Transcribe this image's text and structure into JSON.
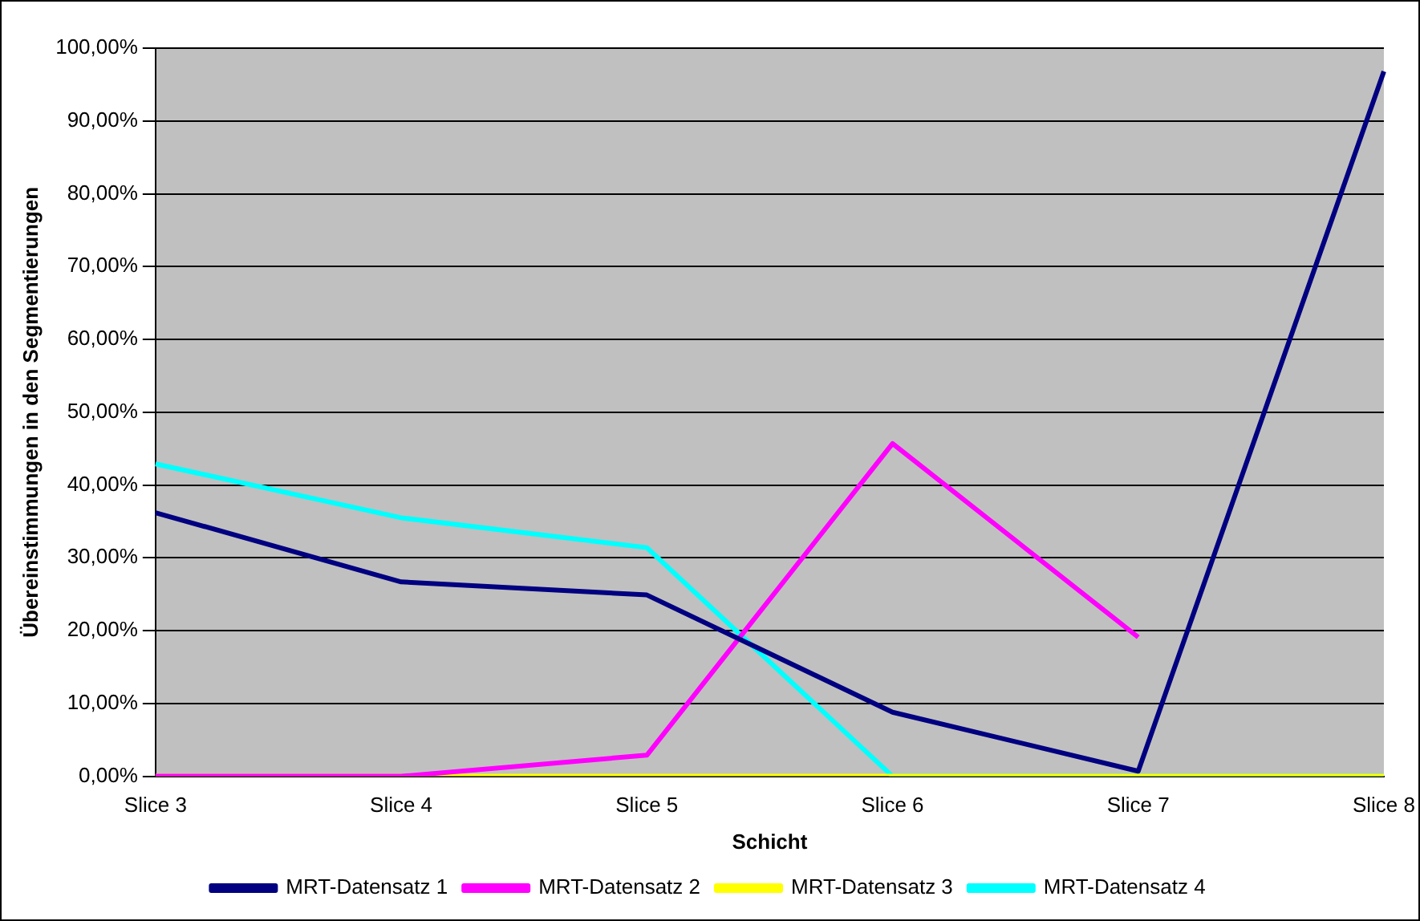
{
  "chart_data": {
    "type": "line",
    "xlabel": "Schicht",
    "ylabel": "Übereinstimmungen in den Segmentierungen",
    "categories": [
      "Slice 3",
      "Slice 4",
      "Slice 5",
      "Slice 6",
      "Slice 7",
      "Slice 8"
    ],
    "series": [
      {
        "name": "MRT-Datensatz 1",
        "color": "#000080",
        "values": [
          36.2,
          26.7,
          24.9,
          8.8,
          0.7,
          96.8
        ]
      },
      {
        "name": "MRT-Datensatz 2",
        "color": "#ff00ff",
        "values": [
          0,
          0,
          2.9,
          45.7,
          19.1,
          null
        ]
      },
      {
        "name": "MRT-Datensatz 3",
        "color": "#ffff00",
        "values": [
          0,
          0,
          0,
          0,
          0,
          0
        ]
      },
      {
        "name": "MRT-Datensatz 4",
        "color": "#00ffff",
        "values": [
          42.9,
          35.5,
          31.4,
          0,
          0,
          0
        ]
      }
    ],
    "ylim": [
      0,
      100
    ],
    "yticks": [
      {
        "value": 0,
        "label": "0,00%"
      },
      {
        "value": 10,
        "label": "10,00%"
      },
      {
        "value": 20,
        "label": "20,00%"
      },
      {
        "value": 30,
        "label": "30,00%"
      },
      {
        "value": 40,
        "label": "40,00%"
      },
      {
        "value": 50,
        "label": "50,00%"
      },
      {
        "value": 60,
        "label": "60,00%"
      },
      {
        "value": 70,
        "label": "70,00%"
      },
      {
        "value": 80,
        "label": "80,00%"
      },
      {
        "value": 90,
        "label": "90,00%"
      },
      {
        "value": 100,
        "label": "100,00%"
      }
    ],
    "grid": "y",
    "legend": "bottom",
    "marker": "none",
    "line_style": "solid"
  }
}
